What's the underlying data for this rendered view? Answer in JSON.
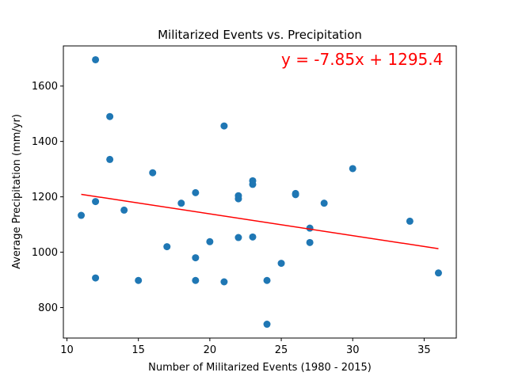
{
  "chart_data": {
    "type": "scatter",
    "title": "Militarized Events vs. Precipitation",
    "xlabel": "Number of Militarized Events (1980 - 2015)",
    "ylabel": "Average Precipitation (mm/yr)",
    "xlim": [
      9.75,
      37.25
    ],
    "ylim": [
      690,
      1745
    ],
    "xticks": [
      10,
      15,
      20,
      25,
      30,
      35
    ],
    "yticks": [
      800,
      1000,
      1200,
      1400,
      1600
    ],
    "grid": false,
    "point_color": "#1f77b4",
    "line_color": "#ff0000",
    "annotation": "y = -7.85x + 1295.4",
    "regression": {
      "slope": -7.85,
      "intercept": 1295.4,
      "x_start": 11,
      "x_end": 36
    },
    "points": [
      {
        "x": 12,
        "y": 1695
      },
      {
        "x": 13,
        "y": 1490
      },
      {
        "x": 13,
        "y": 1335
      },
      {
        "x": 11,
        "y": 1133
      },
      {
        "x": 12,
        "y": 1183
      },
      {
        "x": 12,
        "y": 907
      },
      {
        "x": 14,
        "y": 1152
      },
      {
        "x": 15,
        "y": 898
      },
      {
        "x": 16,
        "y": 1287
      },
      {
        "x": 17,
        "y": 1020
      },
      {
        "x": 18,
        "y": 1177
      },
      {
        "x": 19,
        "y": 1215
      },
      {
        "x": 19,
        "y": 980
      },
      {
        "x": 19,
        "y": 898
      },
      {
        "x": 20,
        "y": 1038
      },
      {
        "x": 21,
        "y": 1456
      },
      {
        "x": 21,
        "y": 893
      },
      {
        "x": 22,
        "y": 1204
      },
      {
        "x": 22,
        "y": 1193
      },
      {
        "x": 22,
        "y": 1053
      },
      {
        "x": 23,
        "y": 1258
      },
      {
        "x": 23,
        "y": 1245
      },
      {
        "x": 23,
        "y": 1055
      },
      {
        "x": 24,
        "y": 898
      },
      {
        "x": 24,
        "y": 740
      },
      {
        "x": 25,
        "y": 960
      },
      {
        "x": 26,
        "y": 1212
      },
      {
        "x": 26,
        "y": 1208
      },
      {
        "x": 27,
        "y": 1087
      },
      {
        "x": 27,
        "y": 1035
      },
      {
        "x": 28,
        "y": 1177
      },
      {
        "x": 30,
        "y": 1302
      },
      {
        "x": 34,
        "y": 1112
      },
      {
        "x": 36,
        "y": 925
      }
    ]
  }
}
